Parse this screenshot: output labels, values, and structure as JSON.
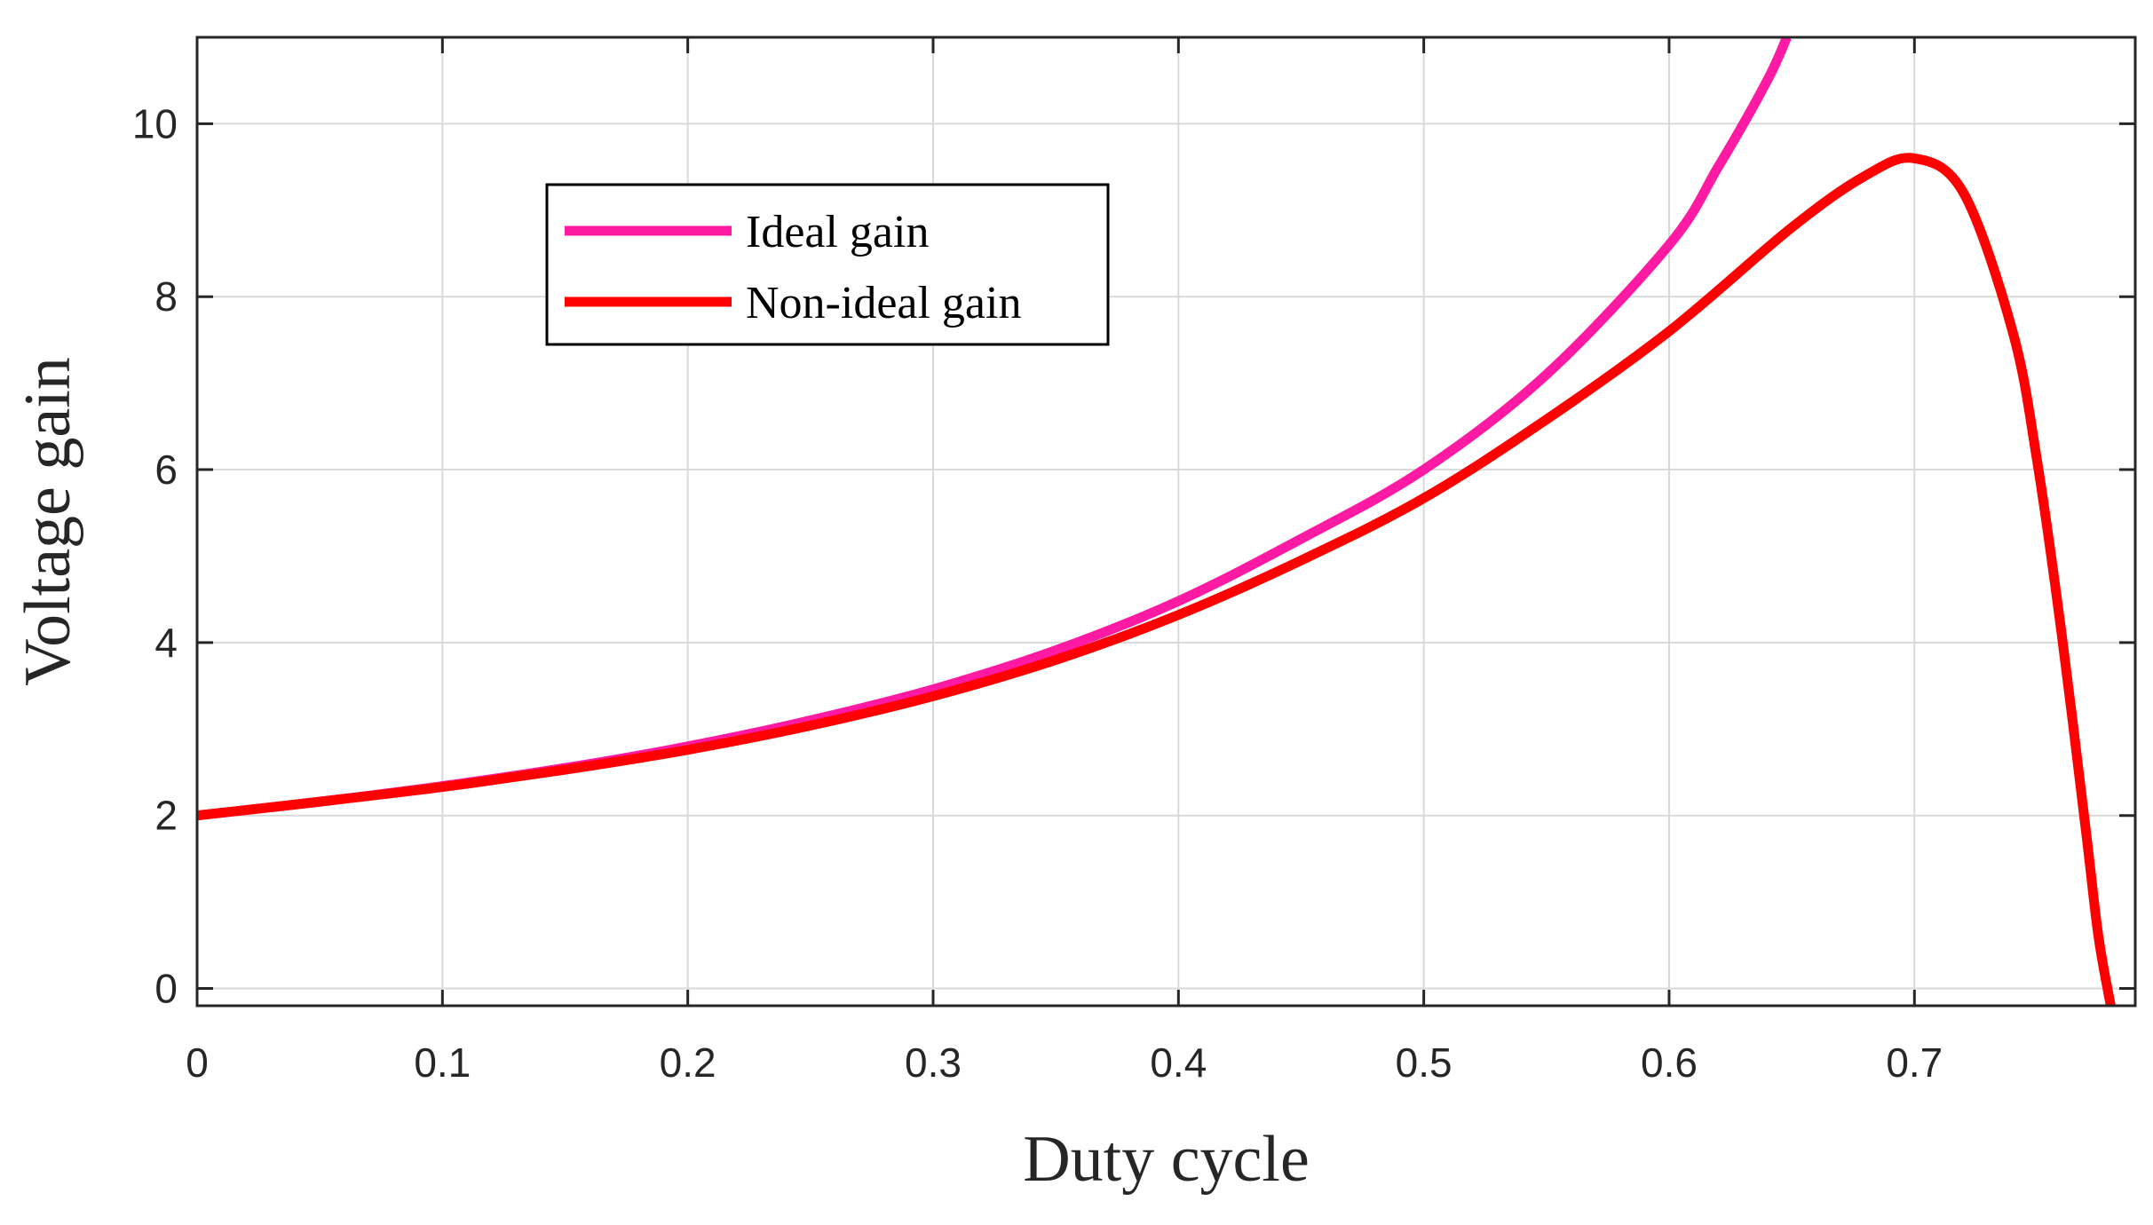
{
  "chart_data": {
    "type": "line",
    "title": "",
    "xlabel": "Duty cycle",
    "ylabel": "Voltage gain",
    "xlim": [
      0,
      0.79
    ],
    "ylim": [
      -0.2,
      11
    ],
    "grid": true,
    "legend_position": "top-left",
    "xticks": [
      0,
      0.1,
      0.2,
      0.3,
      0.4,
      0.5,
      0.6,
      0.7
    ],
    "xtick_labels": [
      "0",
      "0.1",
      "0.2",
      "0.3",
      "0.4",
      "0.5",
      "0.6",
      "0.7"
    ],
    "yticks": [
      0,
      2,
      4,
      6,
      8,
      10
    ],
    "ytick_labels": [
      "0",
      "2",
      "4",
      "6",
      "8",
      "10"
    ],
    "series": [
      {
        "name": "Ideal gain",
        "color": "#ff1aa3",
        "x": [
          0,
          0.05,
          0.1,
          0.15,
          0.2,
          0.25,
          0.3,
          0.35,
          0.4,
          0.45,
          0.5,
          0.55,
          0.6,
          0.62,
          0.64,
          0.648
        ],
        "y": [
          2.0,
          2.16,
          2.34,
          2.55,
          2.8,
          3.1,
          3.46,
          3.91,
          4.48,
          5.2,
          6.0,
          7.1,
          8.6,
          9.5,
          10.5,
          11.0
        ]
      },
      {
        "name": "Non-ideal gain",
        "color": "#ff0000",
        "x": [
          0,
          0.05,
          0.1,
          0.15,
          0.2,
          0.25,
          0.3,
          0.35,
          0.4,
          0.45,
          0.5,
          0.55,
          0.6,
          0.65,
          0.68,
          0.7,
          0.72,
          0.74,
          0.75,
          0.76,
          0.77,
          0.775,
          0.78
        ],
        "y": [
          2.0,
          2.16,
          2.33,
          2.53,
          2.76,
          3.04,
          3.38,
          3.8,
          4.32,
          4.95,
          5.67,
          6.58,
          7.6,
          8.8,
          9.4,
          9.6,
          9.2,
          7.6,
          6.1,
          4.1,
          1.8,
          0.6,
          -0.2
        ]
      }
    ]
  }
}
